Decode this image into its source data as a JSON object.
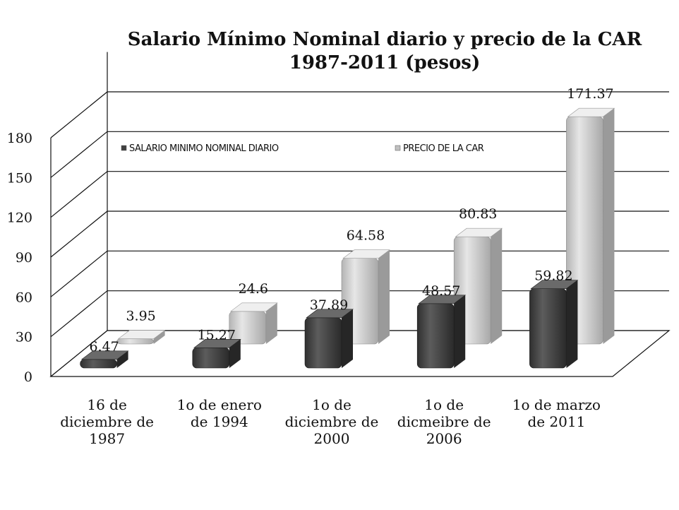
{
  "chart_data": {
    "type": "bar",
    "title": "Salario Mínimo Nominal diario y precio de la CAR 1987-2011 (pesos)",
    "categories": [
      [
        "16 de",
        "diciembre de",
        "1987"
      ],
      [
        "1o de enero",
        "de 1994"
      ],
      [
        "1o de",
        "diciembre de",
        "2000"
      ],
      [
        "1o de",
        "dicmeibre de",
        "2006"
      ],
      [
        "1o de marzo",
        "de 2011"
      ]
    ],
    "series": [
      {
        "name": "SALARIO MINIMO NOMINAL DIARIO",
        "values": [
          6.47,
          15.27,
          37.89,
          48.57,
          59.82
        ],
        "labels": [
          "6.47",
          "15.27",
          "37.89",
          "48.57",
          "59.82"
        ],
        "color": "#404040"
      },
      {
        "name": "PRECIO DE LA CAR",
        "values": [
          3.95,
          24.6,
          64.58,
          80.83,
          171.37
        ],
        "labels": [
          "3.95",
          "24.6",
          "64.58",
          "80.83",
          "171.37"
        ],
        "color": "#c0c0c0"
      }
    ],
    "yticks": [
      "0",
      "30",
      "60",
      "90",
      "120",
      "150",
      "180"
    ],
    "ylim": [
      0,
      180
    ],
    "grid": true,
    "legend": "top",
    "style": "3d"
  }
}
